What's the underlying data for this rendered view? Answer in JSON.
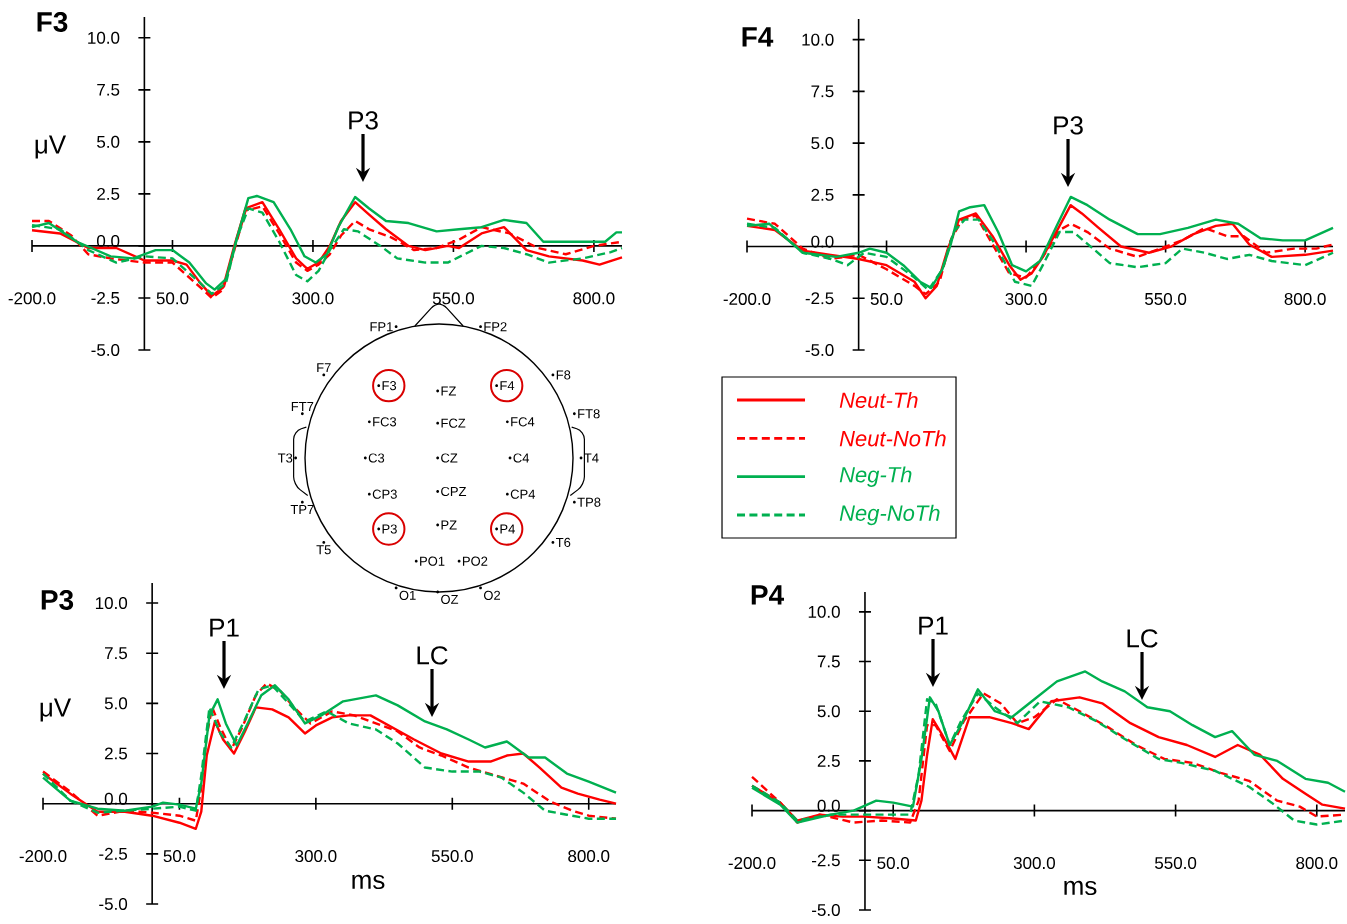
{
  "chart_data": [
    {
      "type": "line",
      "title": "F3",
      "ylabel": "μV",
      "xlim": [
        -200,
        850
      ],
      "ylim": [
        -5,
        11
      ],
      "xticks": [
        {
          "value": -200,
          "label": "-200.0"
        },
        {
          "value": 50,
          "label": "50.0"
        },
        {
          "value": 300,
          "label": "300.0"
        },
        {
          "value": 550,
          "label": "550.0"
        },
        {
          "value": 800,
          "label": "800.0"
        }
      ],
      "yticks": [
        {
          "value": -5,
          "label": "-5.0"
        },
        {
          "value": -2.5,
          "label": "-2.5"
        },
        {
          "value": 0,
          "label": "0.0"
        },
        {
          "value": 2.5,
          "label": "2.5"
        },
        {
          "value": 5,
          "label": "5.0"
        },
        {
          "value": 7.5,
          "label": "7.5"
        },
        {
          "value": 10,
          "label": "10.0"
        }
      ],
      "annotations": [
        "P3"
      ],
      "series": [
        {
          "color": "#ff0000",
          "line_style": "solid",
          "x": [
            -200,
            -150,
            -100,
            -50,
            0,
            50,
            75,
            100,
            120,
            140,
            160,
            180,
            210,
            240,
            270,
            290,
            310,
            330,
            350,
            375,
            400,
            430,
            470,
            500,
            540,
            560,
            600,
            640,
            680,
            720,
            780,
            810,
            850
          ],
          "values": [
            0.75,
            0.6,
            -0.1,
            -0.1,
            -0.7,
            -0.7,
            -0.9,
            -1.8,
            -2.4,
            -2.0,
            0,
            1.8,
            2.1,
            0.8,
            -0.6,
            -1.1,
            -0.8,
            0,
            1.2,
            2.1,
            1.5,
            0.8,
            0,
            -0.2,
            0,
            -0.1,
            0.6,
            0.9,
            -0.2,
            -0.5,
            -0.7,
            -0.9,
            -0.55
          ]
        },
        {
          "color": "#ff0000",
          "line_style": "dashed",
          "x": [
            -200,
            -170,
            -130,
            -100,
            -60,
            0,
            50,
            100,
            120,
            140,
            160,
            180,
            210,
            240,
            270,
            290,
            310,
            330,
            350,
            375,
            400,
            440,
            480,
            520,
            560,
            600,
            650,
            700,
            750,
            800,
            850
          ],
          "values": [
            1.2,
            1.2,
            0.5,
            -0.4,
            -0.6,
            -0.8,
            -0.8,
            -2.0,
            -2.5,
            -2.1,
            -0.2,
            1.7,
            1.9,
            0.6,
            -0.8,
            -1.2,
            -0.9,
            -0.4,
            0.5,
            1.2,
            0.8,
            0.4,
            -0.2,
            -0.1,
            0.3,
            0.9,
            0.6,
            -0.1,
            -0.4,
            0,
            0.2
          ]
        },
        {
          "color": "#00b050",
          "line_style": "solid",
          "x": [
            -200,
            -170,
            -120,
            -60,
            -20,
            20,
            50,
            80,
            110,
            125,
            145,
            165,
            185,
            200,
            230,
            260,
            285,
            305,
            325,
            345,
            375,
            400,
            430,
            470,
            520,
            560,
            600,
            640,
            680,
            710,
            760,
            820,
            840,
            850
          ],
          "values": [
            0.9,
            1.1,
            0.2,
            -0.5,
            -0.6,
            -0.2,
            -0.2,
            -0.8,
            -1.8,
            -2.1,
            -1.6,
            0.4,
            2.3,
            2.4,
            2.1,
            0.8,
            -0.5,
            -0.8,
            -0.4,
            0.9,
            2.35,
            1.8,
            1.2,
            1.1,
            0.7,
            0.8,
            0.9,
            1.25,
            1.1,
            0.2,
            0.2,
            0.2,
            0.65,
            0.65
          ]
        },
        {
          "color": "#00b050",
          "line_style": "dashed",
          "x": [
            -200,
            -150,
            -100,
            -50,
            0,
            50,
            100,
            120,
            145,
            165,
            185,
            210,
            240,
            270,
            290,
            310,
            330,
            355,
            380,
            420,
            450,
            500,
            540,
            570,
            600,
            640,
            680,
            720,
            780,
            830,
            850
          ],
          "values": [
            1.0,
            0.8,
            -0.2,
            -0.8,
            -0.5,
            -0.6,
            -1.8,
            -2.3,
            -1.8,
            0.4,
            1.8,
            1.6,
            0.2,
            -1.4,
            -1.7,
            -1.2,
            -0.2,
            0.8,
            0.7,
            0,
            -0.6,
            -0.8,
            -0.8,
            -0.4,
            0,
            -0.1,
            -0.4,
            -0.8,
            -0.6,
            -0.3,
            -0.1
          ]
        }
      ]
    },
    {
      "type": "line",
      "title": "F4",
      "xlim": [
        -200,
        850
      ],
      "ylim": [
        -5,
        11
      ],
      "legend": "bottom",
      "xticks": [
        {
          "value": -200,
          "label": "-200.0"
        },
        {
          "value": 50,
          "label": "50.0"
        },
        {
          "value": 300,
          "label": "300.0"
        },
        {
          "value": 550,
          "label": "550.0"
        },
        {
          "value": 800,
          "label": "800.0"
        }
      ],
      "yticks": [
        {
          "value": -5,
          "label": "-5.0"
        },
        {
          "value": -2.5,
          "label": "-2.5"
        },
        {
          "value": 0,
          "label": "0.0"
        },
        {
          "value": 2.5,
          "label": "2.5"
        },
        {
          "value": 5,
          "label": "5.0"
        },
        {
          "value": 7.5,
          "label": "7.5"
        },
        {
          "value": 10,
          "label": "10.0"
        }
      ],
      "annotations": [
        "P3"
      ],
      "series": [
        {
          "name": "Neut-Th",
          "color": "#ff0000",
          "line_style": "solid",
          "x": [
            -200,
            -150,
            -100,
            -50,
            0,
            50,
            100,
            120,
            140,
            160,
            180,
            210,
            240,
            270,
            290,
            310,
            330,
            360,
            380,
            400,
            430,
            470,
            520,
            560,
            600,
            640,
            670,
            700,
            740,
            800,
            850
          ],
          "values": [
            1.0,
            0.8,
            -0.2,
            -0.4,
            -0.6,
            -0.9,
            -1.7,
            -2.5,
            -1.9,
            -0.1,
            1.3,
            1.6,
            0.5,
            -0.9,
            -1.6,
            -1.3,
            -0.5,
            1.0,
            2.0,
            1.6,
            0.9,
            0,
            -0.3,
            0,
            0.6,
            1.0,
            1.1,
            0.1,
            -0.5,
            -0.4,
            -0.2
          ]
        },
        {
          "name": "Neut-NoTh",
          "color": "#ff0000",
          "line_style": "dashed",
          "x": [
            -200,
            -150,
            -100,
            -50,
            0,
            50,
            100,
            120,
            145,
            165,
            185,
            210,
            240,
            270,
            300,
            330,
            360,
            380,
            410,
            450,
            500,
            540,
            580,
            620,
            660,
            690,
            730,
            780,
            820,
            850
          ],
          "values": [
            1.35,
            1.1,
            -0.1,
            -0.6,
            -0.4,
            -1.1,
            -1.9,
            -2.3,
            -1.7,
            0.3,
            1.3,
            1.5,
            0.1,
            -1.3,
            -1.5,
            -0.5,
            0.8,
            1.1,
            0.7,
            -0.1,
            -0.5,
            -0.1,
            0.3,
            0.9,
            0.5,
            0.5,
            -0.3,
            -0.1,
            -0.1,
            0.1
          ]
        },
        {
          "name": "Neg-Th",
          "color": "#00b050",
          "line_style": "solid",
          "x": [
            -200,
            -160,
            -100,
            -40,
            0,
            20,
            50,
            80,
            110,
            130,
            150,
            165,
            180,
            200,
            225,
            250,
            275,
            300,
            325,
            355,
            380,
            410,
            450,
            500,
            540,
            590,
            640,
            680,
            720,
            760,
            800,
            850
          ],
          "values": [
            1.0,
            1.1,
            -0.3,
            -0.5,
            -0.3,
            -0.1,
            -0.3,
            -0.9,
            -1.7,
            -2.0,
            -1.1,
            0.1,
            1.7,
            1.9,
            2.0,
            0.7,
            -0.9,
            -1.2,
            -0.7,
            1.0,
            2.4,
            2.0,
            1.3,
            0.6,
            0.6,
            0.9,
            1.3,
            1.1,
            0.4,
            0.3,
            0.3,
            0.9
          ]
        },
        {
          "name": "Neg-NoTh",
          "color": "#00b050",
          "line_style": "dashed",
          "x": [
            -200,
            -150,
            -100,
            -50,
            -20,
            10,
            50,
            100,
            125,
            150,
            170,
            190,
            215,
            245,
            280,
            310,
            330,
            360,
            385,
            420,
            450,
            500,
            550,
            580,
            620,
            660,
            700,
            740,
            800,
            850
          ],
          "values": [
            1.1,
            0.9,
            -0.3,
            -0.6,
            -0.9,
            -0.3,
            -0.5,
            -1.5,
            -2.1,
            -1.1,
            0.7,
            1.3,
            1.3,
            0.1,
            -1.7,
            -1.9,
            -0.9,
            0.7,
            0.7,
            -0.1,
            -0.8,
            -1.0,
            -0.8,
            -0.1,
            -0.3,
            -0.6,
            -0.4,
            -0.7,
            -0.9,
            -0.3
          ]
        }
      ]
    },
    {
      "type": "other",
      "annotations": [
        "FP1",
        "FP2",
        "F7",
        "F3",
        "FZ",
        "F4",
        "F8",
        "FT7",
        "FC3",
        "FCZ",
        "FC4",
        "FT8",
        "T3",
        "C3",
        "CZ",
        "C4",
        "T4",
        "CP3",
        "CPZ",
        "CP4",
        "TP7",
        "TP8",
        "P3",
        "PZ",
        "P4",
        "T5",
        "T6",
        "PO1",
        "PO2",
        "O1",
        "OZ",
        "O2"
      ]
    },
    {
      "type": "line",
      "title": "P3",
      "ylabel": "μV",
      "xlabel": "ms",
      "xlim": [
        -200,
        850
      ],
      "ylim": [
        -5,
        11
      ],
      "xticks": [
        {
          "value": -200,
          "label": "-200.0"
        },
        {
          "value": 50,
          "label": "50.0"
        },
        {
          "value": 300,
          "label": "300.0"
        },
        {
          "value": 550,
          "label": "550.0"
        },
        {
          "value": 800,
          "label": "800.0"
        }
      ],
      "yticks": [
        {
          "value": -5,
          "label": "-5.0"
        },
        {
          "value": -2.5,
          "label": "-2.5"
        },
        {
          "value": 0,
          "label": "0.0"
        },
        {
          "value": 2.5,
          "label": "2.5"
        },
        {
          "value": 5,
          "label": "5.0"
        },
        {
          "value": 7.5,
          "label": "7.5"
        },
        {
          "value": 10,
          "label": "10.0"
        }
      ],
      "annotations": [
        "P1",
        "LC"
      ],
      "series": [
        {
          "color": "#ff0000",
          "line_style": "solid",
          "x": [
            -200,
            -150,
            -100,
            -50,
            0,
            50,
            80,
            90,
            100,
            115,
            130,
            150,
            170,
            190,
            220,
            250,
            280,
            300,
            330,
            360,
            400,
            440,
            480,
            530,
            580,
            620,
            650,
            680,
            710,
            750,
            780,
            820,
            850
          ],
          "values": [
            1.5,
            0.5,
            -0.4,
            -0.4,
            -0.6,
            -0.95,
            -1.25,
            -0.4,
            2.4,
            4.1,
            3.2,
            2.5,
            3.6,
            4.8,
            4.7,
            4.3,
            3.5,
            3.9,
            4.3,
            4.4,
            4.4,
            3.8,
            3.2,
            2.5,
            2.1,
            2.1,
            2.4,
            2.5,
            1.8,
            0.8,
            0.5,
            0.2,
            0
          ]
        },
        {
          "color": "#ff0000",
          "line_style": "dashed",
          "x": [
            -200,
            -150,
            -100,
            -50,
            0,
            50,
            80,
            90,
            100,
            110,
            125,
            145,
            165,
            190,
            210,
            235,
            260,
            290,
            330,
            370,
            410,
            450,
            490,
            530,
            580,
            630,
            680,
            730,
            770,
            800,
            850
          ],
          "values": [
            1.6,
            0.6,
            -0.6,
            -0.35,
            -0.45,
            -0.6,
            -0.85,
            0.8,
            3.4,
            4.8,
            3.8,
            2.7,
            3.8,
            5.4,
            6.0,
            5.6,
            4.8,
            4.0,
            4.6,
            4.4,
            4.0,
            3.6,
            2.8,
            2.4,
            1.8,
            1.4,
            1.0,
            0.1,
            -0.35,
            -0.6,
            -0.75
          ]
        },
        {
          "color": "#00b050",
          "line_style": "solid",
          "x": [
            -200,
            -150,
            -100,
            -50,
            0,
            20,
            50,
            80,
            90,
            105,
            120,
            135,
            155,
            175,
            200,
            225,
            250,
            280,
            310,
            350,
            410,
            450,
            500,
            540,
            580,
            610,
            650,
            690,
            720,
            760,
            800,
            850
          ],
          "values": [
            1.3,
            0.15,
            -0.25,
            -0.35,
            -0.15,
            0.05,
            -0.05,
            -0.25,
            1.0,
            4.4,
            5.2,
            4.0,
            2.9,
            4.0,
            5.4,
            5.9,
            5.2,
            4.0,
            4.4,
            5.1,
            5.4,
            4.9,
            4.1,
            3.7,
            3.2,
            2.8,
            3.1,
            2.3,
            2.3,
            1.5,
            1.1,
            0.55
          ]
        },
        {
          "color": "#00b050",
          "line_style": "dashed",
          "x": [
            -200,
            -150,
            -100,
            -50,
            0,
            50,
            80,
            90,
            105,
            125,
            145,
            170,
            195,
            220,
            250,
            280,
            320,
            360,
            410,
            450,
            500,
            550,
            600,
            640,
            680,
            720,
            760,
            800,
            850
          ],
          "values": [
            1.5,
            0.15,
            -0.45,
            -0.35,
            -0.25,
            -0.15,
            -0.35,
            1.4,
            4.8,
            3.5,
            2.8,
            4.2,
            5.7,
            5.9,
            5.0,
            4.1,
            4.6,
            4.0,
            3.7,
            3.0,
            1.8,
            1.6,
            1.6,
            1.3,
            0.55,
            -0.35,
            -0.55,
            -0.75,
            -0.75
          ]
        }
      ]
    },
    {
      "type": "line",
      "title": "P4",
      "xlabel": "ms",
      "xlim": [
        -200,
        850
      ],
      "ylim": [
        -5,
        11
      ],
      "xticks": [
        {
          "value": -200,
          "label": "-200.0"
        },
        {
          "value": 50,
          "label": "50.0"
        },
        {
          "value": 300,
          "label": "300.0"
        },
        {
          "value": 550,
          "label": "550.0"
        },
        {
          "value": 800,
          "label": "800.0"
        }
      ],
      "yticks": [
        {
          "value": -5,
          "label": "-5.0"
        },
        {
          "value": -2.5,
          "label": "-2.5"
        },
        {
          "value": 0,
          "label": "0.0"
        },
        {
          "value": 2.5,
          "label": "2.5"
        },
        {
          "value": 5,
          "label": "5.0"
        },
        {
          "value": 7.5,
          "label": "7.5"
        },
        {
          "value": 10,
          "label": "10.0"
        }
      ],
      "annotations": [
        "P1",
        "LC"
      ],
      "series": [
        {
          "color": "#ff0000",
          "line_style": "solid",
          "x": [
            -200,
            -150,
            -120,
            -80,
            -40,
            0,
            50,
            90,
            100,
            110,
            120,
            135,
            160,
            185,
            220,
            260,
            290,
            330,
            380,
            420,
            470,
            520,
            570,
            620,
            660,
            700,
            740,
            780,
            810,
            850
          ],
          "values": [
            1.25,
            0.4,
            -0.5,
            -0.2,
            -0.3,
            -0.3,
            -0.4,
            -0.5,
            0.5,
            2.8,
            4.6,
            3.9,
            2.6,
            4.7,
            4.7,
            4.4,
            4.1,
            5.5,
            5.7,
            5.4,
            4.4,
            3.7,
            3.3,
            2.7,
            3.3,
            2.8,
            1.6,
            0.85,
            0.3,
            0.1
          ]
        },
        {
          "color": "#ff0000",
          "line_style": "dashed",
          "x": [
            -200,
            -150,
            -120,
            -80,
            -20,
            30,
            80,
            95,
            110,
            125,
            150,
            175,
            210,
            240,
            270,
            300,
            340,
            380,
            430,
            480,
            530,
            580,
            630,
            680,
            730,
            770,
            800,
            850
          ],
          "values": [
            1.7,
            0.4,
            -0.6,
            -0.2,
            -0.6,
            -0.5,
            -0.6,
            0.5,
            4.3,
            4.3,
            3.0,
            4.5,
            5.9,
            5.4,
            4.4,
            4.7,
            5.6,
            5.0,
            4.2,
            3.3,
            2.6,
            2.4,
            1.9,
            1.5,
            0.5,
            0.2,
            -0.3,
            -0.2
          ]
        },
        {
          "color": "#00b050",
          "line_style": "solid",
          "x": [
            -200,
            -150,
            -120,
            -60,
            -20,
            20,
            50,
            85,
            100,
            115,
            130,
            150,
            170,
            200,
            230,
            260,
            300,
            340,
            390,
            420,
            460,
            500,
            540,
            580,
            620,
            650,
            690,
            730,
            780,
            820,
            850
          ],
          "values": [
            1.15,
            0.3,
            -0.6,
            -0.2,
            0,
            0.5,
            0.4,
            0.2,
            2.6,
            5.7,
            5.0,
            3.3,
            4.3,
            6.1,
            5.0,
            4.7,
            5.6,
            6.5,
            7.0,
            6.5,
            6.0,
            5.2,
            5.0,
            4.3,
            3.7,
            4.0,
            2.8,
            2.5,
            1.6,
            1.4,
            0.95
          ]
        },
        {
          "color": "#00b050",
          "line_style": "dashed",
          "x": [
            -200,
            -150,
            -120,
            -60,
            -20,
            20,
            80,
            95,
            110,
            125,
            150,
            170,
            200,
            230,
            270,
            310,
            360,
            410,
            460,
            520,
            560,
            620,
            680,
            720,
            760,
            800,
            850
          ],
          "values": [
            1.25,
            0.4,
            -0.5,
            -0.2,
            -0.2,
            -0.2,
            -0.2,
            1.8,
            5.6,
            5.4,
            3.3,
            4.5,
            5.9,
            5.2,
            4.4,
            5.5,
            5.2,
            4.5,
            3.6,
            2.6,
            2.4,
            2.0,
            1.2,
            0.4,
            -0.5,
            -0.7,
            -0.5
          ]
        }
      ]
    }
  ]
}
